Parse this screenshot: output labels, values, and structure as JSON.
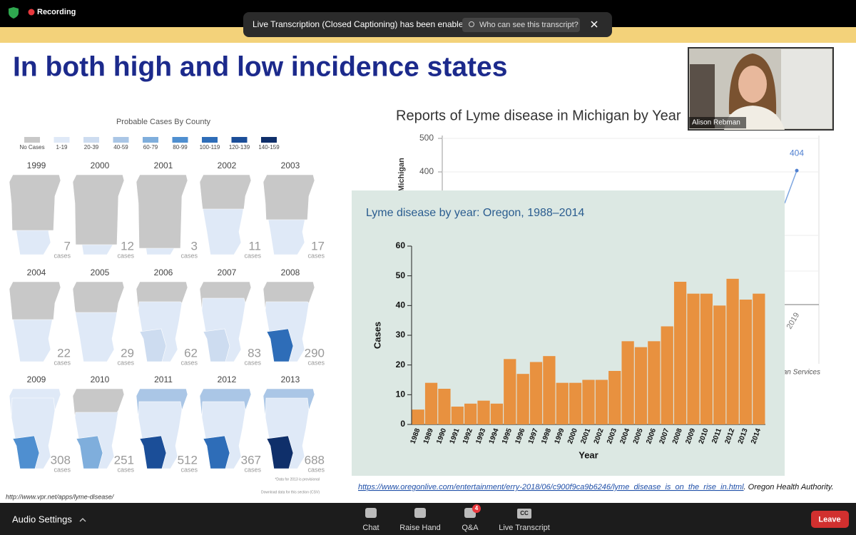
{
  "topbar": {
    "recording": "Recording"
  },
  "notification": {
    "text": "Live Transcription (Closed Captioning) has been enabled",
    "button": "Who can see this transcript?"
  },
  "slide": {
    "title": "In both high and low incidence states"
  },
  "vermont": {
    "title": "Probable Cases By County",
    "legend": [
      {
        "label": "No Cases",
        "color": "#c8c8c8"
      },
      {
        "label": "1-19",
        "color": "#dfe9f7"
      },
      {
        "label": "20-39",
        "color": "#cddcf0"
      },
      {
        "label": "40-59",
        "color": "#aac6e6"
      },
      {
        "label": "60-79",
        "color": "#7faedc"
      },
      {
        "label": "80-99",
        "color": "#4f8fd0"
      },
      {
        "label": "100-119",
        "color": "#2e6db8"
      },
      {
        "label": "120-139",
        "color": "#1b4e98"
      },
      {
        "label": "140-159",
        "color": "#0f2f6a"
      }
    ],
    "cases_label": "cases",
    "maps": [
      {
        "year": "1999",
        "cases": 7
      },
      {
        "year": "2000",
        "cases": 12
      },
      {
        "year": "2001",
        "cases": 3
      },
      {
        "year": "2002",
        "cases": 11
      },
      {
        "year": "2003",
        "cases": 17
      },
      {
        "year": "2004",
        "cases": 22
      },
      {
        "year": "2005",
        "cases": 29
      },
      {
        "year": "2006",
        "cases": 62
      },
      {
        "year": "2007",
        "cases": 83
      },
      {
        "year": "2008",
        "cases": 290
      },
      {
        "year": "2009",
        "cases": 308
      },
      {
        "year": "2010",
        "cases": 251
      },
      {
        "year": "2011",
        "cases": 512
      },
      {
        "year": "2012",
        "cases": 367
      },
      {
        "year": "2013",
        "cases": 688
      }
    ],
    "note": "*Data for 2013 is provisional",
    "download": "Download data for this section (CSV)",
    "source": "http://www.vpr.net/apps/lyme-disease/"
  },
  "michigan": {
    "title": "Reports of Lyme disease in Michigan by Year",
    "y_label": "Michigan",
    "yticks": [
      500,
      400
    ],
    "point": {
      "x": "2019",
      "value": 404
    },
    "source_fragment": "an Services"
  },
  "video": {
    "name": "Alison Rebman"
  },
  "chart_data": {
    "type": "bar",
    "title": "Lyme disease by year: Oregon, 1988–2014",
    "x_label": "Year",
    "y_label": "Cases",
    "categories": [
      "1988",
      "1989",
      "1990",
      "1991",
      "1992",
      "1993",
      "1994",
      "1995",
      "1996",
      "1997",
      "1998",
      "1999",
      "2000",
      "2001",
      "2002",
      "2003",
      "2004",
      "2005",
      "2006",
      "2007",
      "2008",
      "2009",
      "2010",
      "2011",
      "2012",
      "2013",
      "2014"
    ],
    "values": [
      5,
      14,
      12,
      6,
      7,
      8,
      7,
      22,
      17,
      21,
      23,
      14,
      14,
      15,
      15,
      18,
      28,
      26,
      28,
      33,
      48,
      44,
      44,
      40,
      49,
      42,
      44
    ],
    "color": "#e8913f",
    "ylim": [
      0,
      60
    ],
    "yticks": [
      0,
      10,
      20,
      30,
      40,
      50,
      60
    ]
  },
  "oregon_source": {
    "link": "https://www.oregonlive.com/entertainment/erry-2018/06/c900f9ca9b6246/lyme_disease_is_on_the_rise_in.html",
    "credit": ". Oregon Health Authority."
  },
  "toolbar": {
    "audio": "Audio Settings",
    "buttons": [
      {
        "label": "Chat"
      },
      {
        "label": "Raise Hand"
      },
      {
        "label": "Q&A",
        "badge": 4
      },
      {
        "label": "Live Transcript",
        "icon": "CC"
      }
    ],
    "leave": "Leave"
  }
}
